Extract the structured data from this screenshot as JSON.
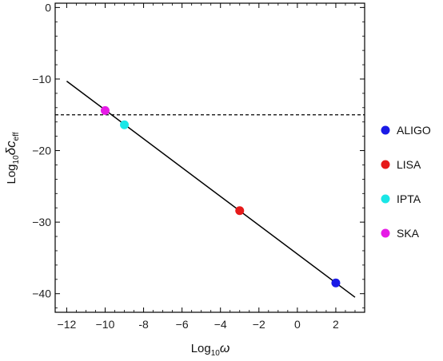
{
  "chart_data": {
    "type": "line",
    "xlabel": {
      "base": "Log",
      "sub": "10",
      "symbol": "ω"
    },
    "ylabel": {
      "base": "Log",
      "sub": "10",
      "symbol": "δc",
      "symbol_sub": "eff"
    },
    "xlim": [
      -12.6,
      3.5
    ],
    "ylim": [
      -42.6,
      0.6
    ],
    "x_ticks": [
      -12,
      -10,
      -8,
      -6,
      -4,
      -2,
      0,
      2
    ],
    "y_ticks": [
      0,
      -10,
      -20,
      -30,
      -40
    ],
    "x_tick_labels": [
      "−12",
      "−10",
      "-8",
      "−6",
      "−4",
      "−2",
      "0",
      "2"
    ],
    "y_tick_labels": [
      "0",
      "−10",
      "−20",
      "−30",
      "−40"
    ],
    "line": {
      "x": [
        -12,
        3
      ],
      "y": [
        -10.3,
        -40.5
      ],
      "color": "#000000"
    },
    "threshold": {
      "y": -15,
      "style": "dashed",
      "color": "#000000"
    },
    "points": [
      {
        "name": "ALIGO",
        "x": 2,
        "y": -38.5,
        "color": "#1a1ae6"
      },
      {
        "name": "LISA",
        "x": -3,
        "y": -28.4,
        "color": "#e61a1a"
      },
      {
        "name": "IPTA",
        "x": -9,
        "y": -16.4,
        "color": "#1ae6e6"
      },
      {
        "name": "SKA",
        "x": -10,
        "y": -14.4,
        "color": "#e61ae6"
      }
    ],
    "legend_position": "right",
    "grid": false
  }
}
